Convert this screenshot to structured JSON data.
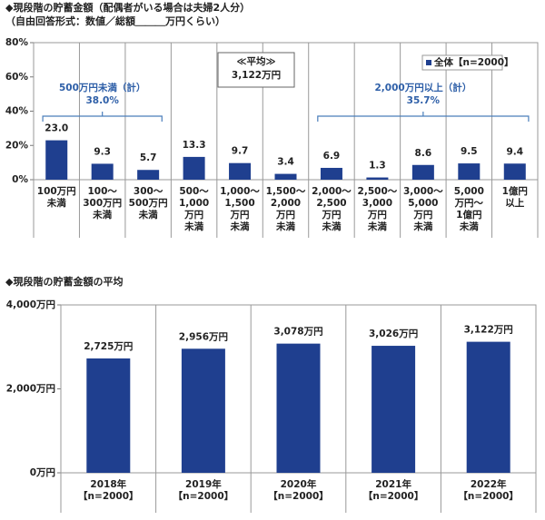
{
  "chart_data": [
    {
      "type": "bar",
      "title": "◆現段階の貯蓄金額（配偶者がいる場合は夫婦2人分）",
      "subtitle": "（自由回答形式：数値／総額＿＿＿万円くらい）",
      "categories": [
        [
          "100万円",
          "未満"
        ],
        [
          "100～",
          "300万円",
          "未満"
        ],
        [
          "300～",
          "500万円",
          "未満"
        ],
        [
          "500～",
          "1,000",
          "万円",
          "未満"
        ],
        [
          "1,000～",
          "1,500",
          "万円",
          "未満"
        ],
        [
          "1,500～",
          "2,000",
          "万円",
          "未満"
        ],
        [
          "2,000～",
          "2,500",
          "万円",
          "未満"
        ],
        [
          "2,500～",
          "3,000",
          "万円",
          "未満"
        ],
        [
          "3,000～",
          "5,000",
          "万円",
          "未満"
        ],
        [
          "5,000",
          "万円～",
          "1億円",
          "未満"
        ],
        [
          "1億円",
          "以上"
        ]
      ],
      "series": [
        {
          "name": "全体【n=2000】",
          "color": "#1f3f8f",
          "values": [
            23.0,
            9.3,
            5.7,
            13.3,
            9.7,
            3.4,
            6.9,
            1.3,
            8.6,
            9.5,
            9.4
          ],
          "value_labels": [
            "23.0",
            "9.3",
            "5.7",
            "13.3",
            "9.7",
            "3.4",
            "6.9",
            "1.3",
            "8.6",
            "9.5",
            "9.4"
          ]
        }
      ],
      "ylim": [
        0,
        80
      ],
      "yticks": [
        {
          "value": 0,
          "label": "0%"
        },
        {
          "value": 20,
          "label": "20%"
        },
        {
          "value": 40,
          "label": "40%"
        },
        {
          "value": 60,
          "label": "60%"
        },
        {
          "value": 80,
          "label": "80%"
        }
      ],
      "brackets": [
        {
          "label": "500万円未満（計）",
          "value_text": "38.0%"
        },
        {
          "label": "2,000万円以上（計）",
          "value_text": "35.7%"
        }
      ],
      "callout": [
        "≪平均≫",
        "3,122万円"
      ],
      "legend": "top-right"
    },
    {
      "type": "bar",
      "title": "◆現段階の貯蓄金額の平均",
      "categories": [
        [
          "2018年",
          "【n=2000】"
        ],
        [
          "2019年",
          "【n=2000】"
        ],
        [
          "2020年",
          "【n=2000】"
        ],
        [
          "2021年",
          "【n=2000】"
        ],
        [
          "2022年",
          "【n=2000】"
        ]
      ],
      "series": [
        {
          "color": "#1f3f8f",
          "values": [
            2725,
            2956,
            3078,
            3026,
            3122
          ],
          "value_labels": [
            "2,725万円",
            "2,956万円",
            "3,078万円",
            "3,026万円",
            "3,122万円"
          ]
        }
      ],
      "ylim": [
        0,
        4000
      ],
      "yticks": [
        {
          "value": 0,
          "label": "0万円"
        },
        {
          "value": 2000,
          "label": "2,000万円"
        },
        {
          "value": 4000,
          "label": "4,000万円"
        }
      ]
    }
  ]
}
